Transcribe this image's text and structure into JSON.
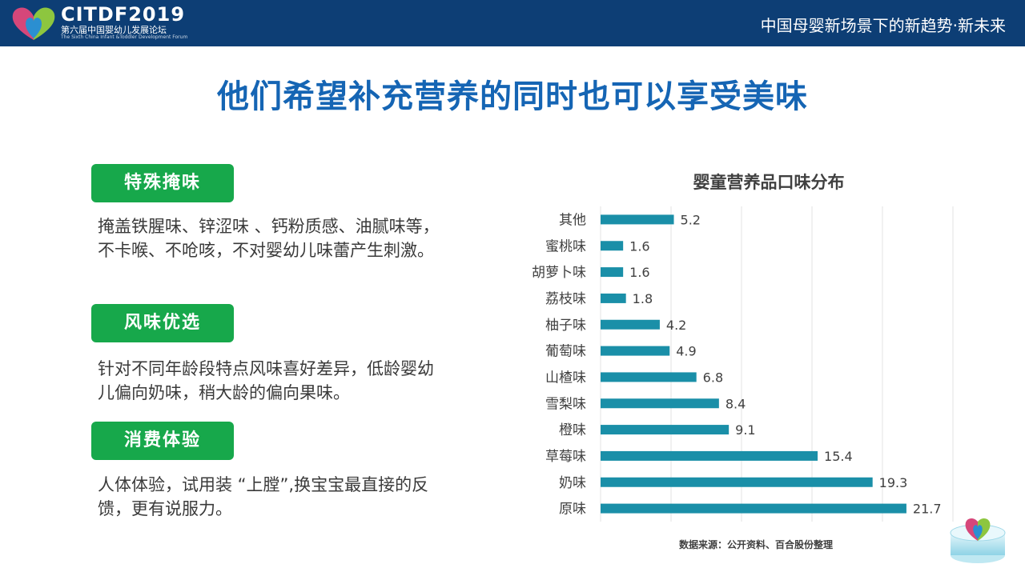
{
  "header": {
    "logo_title": "CITDF2019",
    "logo_subtitle_cn": "第六届中国婴幼儿发展论坛",
    "logo_subtitle_en": "The Sixth China Infant &Toddler Development Forum",
    "slogan": "中国母婴新场景下的新趋势·新未来"
  },
  "headline": "他们希望补充营养的同时也可以享受美味",
  "features": [
    {
      "tag": "特殊掩味",
      "text": "掩盖铁腥味、锌涩味 、钙粉质感、油腻味等，不卡喉、不呛咳，不对婴幼儿味蕾产生刺激。"
    },
    {
      "tag": "风味优选",
      "text": "针对不同年龄段特点风味喜好差异，低龄婴幼儿偏向奶味，稍大龄的偏向果味。"
    },
    {
      "tag": "消费体验",
      "text": "人体体验，试用装 “上膛”,换宝宝最直接的反馈，更有说服力。"
    }
  ],
  "chart_data": {
    "type": "bar",
    "orientation": "horizontal",
    "title": "婴童营养品口味分布",
    "categories": [
      "其他",
      "蜜桃味",
      "胡萝卜味",
      "荔枝味",
      "柚子味",
      "葡萄味",
      "山楂味",
      "雪梨味",
      "橙味",
      "草莓味",
      "奶味",
      "原味"
    ],
    "values": [
      5.2,
      1.6,
      1.6,
      1.8,
      4.2,
      4.9,
      6.8,
      8.4,
      9.1,
      15.4,
      19.3,
      21.7
    ],
    "xlim": [
      0,
      25
    ],
    "grid": true,
    "legend": "none",
    "bar_color": "#1a8fa8"
  },
  "source": "数据来源：公开资料、百合股份整理"
}
